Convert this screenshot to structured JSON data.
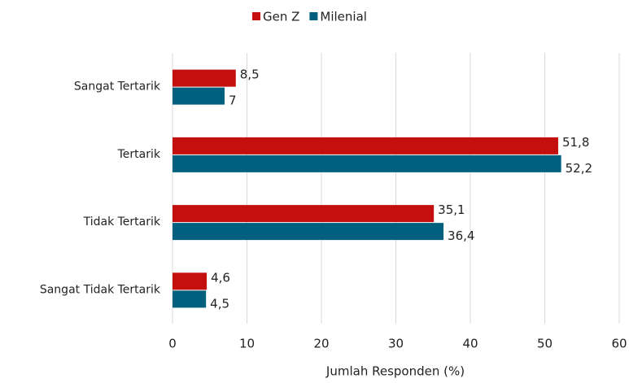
{
  "chart_data": {
    "type": "bar",
    "orientation": "horizontal",
    "x_label": "Jumlah Responden (%)",
    "categories": [
      "Sangat Tertarik",
      "Tertarik",
      "Tidak Tertarik",
      "Sangat Tidak Tertarik"
    ],
    "series": [
      {
        "name": "Gen Z",
        "color": "#c40f0f",
        "values": [
          8.5,
          51.8,
          35.1,
          4.6
        ],
        "value_labels": [
          "8,5",
          "51,8",
          "35,1",
          "4,6"
        ]
      },
      {
        "name": "Milenial",
        "color": "#01607e",
        "values": [
          7,
          52.2,
          36.4,
          4.5
        ],
        "value_labels": [
          "7",
          "52,2",
          "36,4",
          "4,5"
        ]
      }
    ],
    "xlim": [
      0,
      60
    ],
    "xticks": [
      0,
      10,
      20,
      30,
      40,
      50,
      60
    ],
    "grid": true,
    "legend": "top"
  }
}
